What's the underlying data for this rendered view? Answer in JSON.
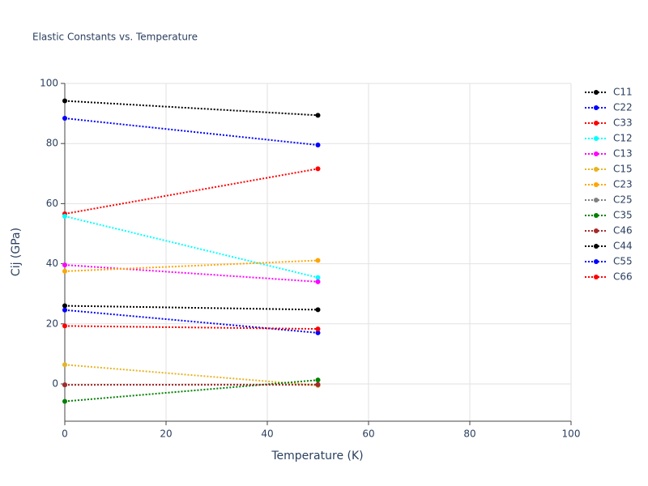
{
  "chart_data": {
    "type": "line",
    "title": "Elastic Constants vs. Temperature",
    "x_label": "Temperature (K)",
    "y_label": "Cij (GPa)",
    "x": [
      0,
      50
    ],
    "series": [
      {
        "name": "C11",
        "color": "#000000",
        "values": [
          94.2,
          89.4
        ]
      },
      {
        "name": "C22",
        "color": "#0000ff",
        "values": [
          88.4,
          79.5
        ]
      },
      {
        "name": "C33",
        "color": "#ff0000",
        "values": [
          56.6,
          71.6
        ]
      },
      {
        "name": "C12",
        "color": "#00ffff",
        "values": [
          55.8,
          35.4
        ]
      },
      {
        "name": "C13",
        "color": "#ff00ff",
        "values": [
          39.6,
          34.0
        ]
      },
      {
        "name": "C15",
        "color": "#e6b422",
        "values": [
          6.4,
          -0.5
        ]
      },
      {
        "name": "C23",
        "color": "#ffa500",
        "values": [
          37.5,
          41.1
        ]
      },
      {
        "name": "C25",
        "color": "#808080",
        "values": [
          -0.3,
          -0.3
        ]
      },
      {
        "name": "C35",
        "color": "#008000",
        "values": [
          -5.8,
          1.3
        ]
      },
      {
        "name": "C46",
        "color": "#a52a2a",
        "values": [
          -0.3,
          -0.2
        ]
      },
      {
        "name": "C44",
        "color": "#000000",
        "values": [
          26.0,
          24.7
        ]
      },
      {
        "name": "C55",
        "color": "#0000ff",
        "values": [
          24.6,
          17.0
        ]
      },
      {
        "name": "C66",
        "color": "#ff0000",
        "values": [
          19.3,
          18.3
        ]
      }
    ],
    "xlim": [
      0,
      100
    ],
    "xticks": [
      0,
      20,
      40,
      60,
      80,
      100
    ],
    "ylim": [
      -12.4,
      100
    ],
    "yticks": [
      0,
      20,
      40,
      60,
      80,
      100
    ],
    "grid": true,
    "legend": "right"
  }
}
